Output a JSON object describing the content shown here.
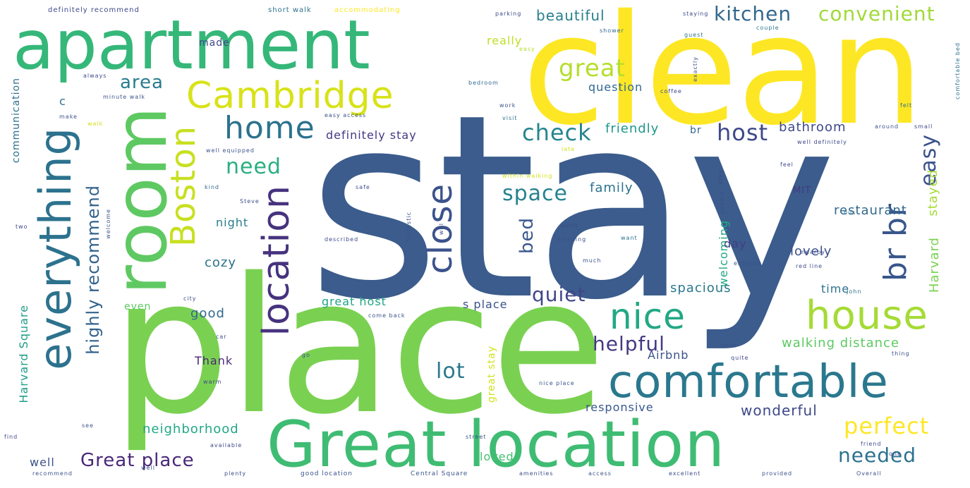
{
  "palette": [
    "#440154",
    "#3b528b",
    "#21918c",
    "#5ec962",
    "#fde725",
    "#2c728e",
    "#27ad81",
    "#aadc32",
    "#472d7b",
    "#35b779"
  ],
  "words": [
    {
      "text": "stay",
      "color": "#3b5c8c"
    },
    {
      "text": "place",
      "color": "#7ad151"
    },
    {
      "text": "clean",
      "color": "#fde725"
    },
    {
      "text": "apartment",
      "color": "#35b779"
    },
    {
      "text": "room",
      "color": "#5ec962"
    },
    {
      "text": "Great location",
      "color": "#3fbc73"
    },
    {
      "text": "comfortable",
      "color": "#2a788e"
    },
    {
      "text": "everything",
      "color": "#2c728e"
    },
    {
      "text": "Cambridge",
      "color": "#d8e219"
    },
    {
      "text": "location",
      "color": "#46327e"
    },
    {
      "text": "Boston",
      "color": "#c8e020"
    },
    {
      "text": "house",
      "color": "#a5db36"
    },
    {
      "text": "nice",
      "color": "#22a884"
    },
    {
      "text": "home",
      "color": "#2c728e"
    },
    {
      "text": "close",
      "color": "#3b528b"
    },
    {
      "text": "br br",
      "color": "#39568c"
    },
    {
      "text": "kitchen",
      "color": "#31688e"
    },
    {
      "text": "convenient",
      "color": "#a0da39"
    },
    {
      "text": "great",
      "color": "#b5de2b"
    },
    {
      "text": "host",
      "color": "#3e4989"
    },
    {
      "text": "check",
      "color": "#25858e"
    },
    {
      "text": "space",
      "color": "#26828e"
    },
    {
      "text": "need",
      "color": "#29af7f"
    },
    {
      "text": "highly recommend",
      "color": "#33638d"
    },
    {
      "text": "easy",
      "color": "#3b528b"
    },
    {
      "text": "helpful",
      "color": "#443983"
    },
    {
      "text": "quiet",
      "color": "#404688"
    },
    {
      "text": "perfect",
      "color": "#fde725"
    },
    {
      "text": "needed",
      "color": "#2c728e"
    },
    {
      "text": "Great place",
      "color": "#482878"
    },
    {
      "text": "lot",
      "color": "#2a788e"
    },
    {
      "text": "bed",
      "color": "#38588c"
    },
    {
      "text": "area",
      "color": "#287c8e"
    },
    {
      "text": "beautiful",
      "color": "#277f8e"
    },
    {
      "text": "bathroom",
      "color": "#3e4989"
    },
    {
      "text": "restaurant",
      "color": "#31688e"
    },
    {
      "text": "stayed",
      "color": "#a5db36"
    },
    {
      "text": "Harvard",
      "color": "#7ad151"
    },
    {
      "text": "walking distance",
      "color": "#5ec962"
    },
    {
      "text": "wonderful",
      "color": "#3e4989"
    },
    {
      "text": "spacious",
      "color": "#2a788e"
    },
    {
      "text": "lovely",
      "color": "#3b528b"
    },
    {
      "text": "family",
      "color": "#2c728e"
    },
    {
      "text": "friendly",
      "color": "#1f988b"
    },
    {
      "text": "definitely stay",
      "color": "#443983"
    },
    {
      "text": "neighborhood",
      "color": "#22a884"
    },
    {
      "text": "responsive",
      "color": "#38588c"
    },
    {
      "text": "great host",
      "color": "#20a386"
    },
    {
      "text": "s place",
      "color": "#3b528b"
    },
    {
      "text": "good",
      "color": "#31688e"
    },
    {
      "text": "Thank",
      "color": "#482878"
    },
    {
      "text": "Airbnb",
      "color": "#3b528b"
    },
    {
      "text": "cozy",
      "color": "#2d708e"
    },
    {
      "text": "night",
      "color": "#287c8e"
    },
    {
      "text": "welcoming",
      "color": "#22a884"
    },
    {
      "text": "day",
      "color": "#433e85"
    },
    {
      "text": "time",
      "color": "#2c728e"
    },
    {
      "text": "question",
      "color": "#31688e"
    },
    {
      "text": "really",
      "color": "#bddf26"
    },
    {
      "text": "made",
      "color": "#3e4989"
    },
    {
      "text": "loved",
      "color": "#44bf70"
    },
    {
      "text": "well",
      "color": "#3b528b"
    },
    {
      "text": "Harvard Square",
      "color": "#1f9e89"
    },
    {
      "text": "communication",
      "color": "#2c728e"
    },
    {
      "text": "even",
      "color": "#5ec962"
    },
    {
      "text": "MIT",
      "color": "#443983"
    },
    {
      "text": "br",
      "color": "#31688e"
    },
    {
      "text": "great stay",
      "color": "#d2e21b"
    },
    {
      "text": "definitely recommend",
      "color": "#3e4989"
    },
    {
      "text": "short walk",
      "color": "#2c728e"
    },
    {
      "text": "accommodating",
      "color": "#fde725"
    },
    {
      "text": "parking",
      "color": "#3e4989"
    },
    {
      "text": "staying",
      "color": "#3e4989"
    },
    {
      "text": "guest",
      "color": "#2c728e"
    },
    {
      "text": "couple",
      "color": "#2a788e"
    },
    {
      "text": "comfortable bed",
      "color": "#2c728e"
    },
    {
      "text": "shower",
      "color": "#31688e"
    },
    {
      "text": "easy",
      "color": "#b5de2b"
    },
    {
      "text": "coffee",
      "color": "#3e4989"
    },
    {
      "text": "exactly",
      "color": "#3b528b"
    },
    {
      "text": "bedroom",
      "color": "#31688e"
    },
    {
      "text": "work",
      "color": "#3b528b"
    },
    {
      "text": "visit",
      "color": "#2c728e"
    },
    {
      "text": "felt",
      "color": "#31688e"
    },
    {
      "text": "around",
      "color": "#3b528b"
    },
    {
      "text": "small",
      "color": "#3e4989"
    },
    {
      "text": "well definitely",
      "color": "#3e4989"
    },
    {
      "text": "feel",
      "color": "#3e4989"
    },
    {
      "text": "always",
      "color": "#3e4989"
    },
    {
      "text": "minute walk",
      "color": "#3b528b"
    },
    {
      "text": "easy access",
      "color": "#3b528b"
    },
    {
      "text": "well equipped",
      "color": "#3b528b"
    },
    {
      "text": "within walking",
      "color": "#d2e21b"
    },
    {
      "text": "safe",
      "color": "#3b528b"
    },
    {
      "text": "kind",
      "color": "#31688e"
    },
    {
      "text": "Steve",
      "color": "#3b528b"
    },
    {
      "text": "bus",
      "color": "#2c728e"
    },
    {
      "text": "quick",
      "color": "#3e4989"
    },
    {
      "text": "amazing",
      "color": "#3b528b"
    },
    {
      "text": "want",
      "color": "#2c728e"
    },
    {
      "text": "nearby",
      "color": "#3e4989"
    },
    {
      "text": "enjoyed",
      "color": "#3b528b"
    },
    {
      "text": "red line",
      "color": "#3e4989"
    },
    {
      "text": "much",
      "color": "#3b528b"
    },
    {
      "text": "John",
      "color": "#2c728e"
    },
    {
      "text": "described",
      "color": "#3e4989"
    },
    {
      "text": "fantastic",
      "color": "#3b528b"
    },
    {
      "text": "issue",
      "color": "#3b528b"
    },
    {
      "text": "quite",
      "color": "#3e4989"
    },
    {
      "text": "thing",
      "color": "#3b528b"
    },
    {
      "text": "city",
      "color": "#3e4989"
    },
    {
      "text": "car",
      "color": "#3b528b"
    },
    {
      "text": "come back",
      "color": "#3b528b"
    },
    {
      "text": "warm",
      "color": "#3e4989"
    },
    {
      "text": "nice place",
      "color": "#3b528b"
    },
    {
      "text": "street",
      "color": "#3b528b"
    },
    {
      "text": "friend",
      "color": "#3e4989"
    },
    {
      "text": "one",
      "color": "#3b528b"
    },
    {
      "text": "available",
      "color": "#3e4989"
    },
    {
      "text": "recommend",
      "color": "#3b528b"
    },
    {
      "text": "plenty",
      "color": "#3e4989"
    },
    {
      "text": "good location",
      "color": "#3b528b"
    },
    {
      "text": "Central Square",
      "color": "#3b528b"
    },
    {
      "text": "amenities",
      "color": "#3e4989"
    },
    {
      "text": "access",
      "color": "#3b528b"
    },
    {
      "text": "excellent",
      "color": "#3e4989"
    },
    {
      "text": "provided",
      "color": "#3b528b"
    },
    {
      "text": "Overall",
      "color": "#3b528b"
    },
    {
      "text": "find",
      "color": "#3e4989"
    },
    {
      "text": "see",
      "color": "#3b528b"
    },
    {
      "text": "two",
      "color": "#3e4989"
    },
    {
      "text": "c",
      "color": "#2c728e"
    },
    {
      "text": "make",
      "color": "#3b528b"
    },
    {
      "text": "walk",
      "color": "#d2e21b"
    },
    {
      "text": "go",
      "color": "#3b528b"
    },
    {
      "text": "late",
      "color": "#d2e21b"
    },
    {
      "text": "stay",
      "color": "#3e4989"
    },
    {
      "text": "people",
      "color": "#3b528b"
    },
    {
      "text": "well",
      "color": "#3b528b"
    },
    {
      "text": "will",
      "color": "#3e4989"
    },
    {
      "text": "welcome",
      "color": "#3b528b"
    }
  ]
}
